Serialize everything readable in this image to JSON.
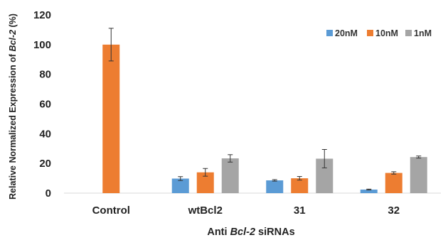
{
  "chart_data": {
    "type": "bar",
    "categories": [
      "Control",
      "wtBcl2",
      "31",
      "32"
    ],
    "series": [
      {
        "name": "20nM",
        "color": "#5b9bd5",
        "values": [
          null,
          9.8,
          8.6,
          2.4
        ],
        "errors": [
          null,
          1.3,
          0.5,
          0.3
        ]
      },
      {
        "name": "10nM",
        "color": "#ed7d31",
        "values": [
          100,
          14,
          10,
          13.6
        ],
        "errors": [
          11,
          2.6,
          1.2,
          0.8
        ]
      },
      {
        "name": "1nM",
        "color": "#a5a5a5",
        "values": [
          null,
          23.4,
          23.2,
          24.3
        ],
        "errors": [
          null,
          2.5,
          6.2,
          0.7
        ]
      }
    ],
    "ylabel_parts": [
      "Relative Normalized Expression of ",
      "Bcl-2",
      " (%)"
    ],
    "xlabel_parts": [
      "Anti ",
      "Bcl-2",
      " siRNAs"
    ],
    "ylim": [
      0,
      120
    ],
    "yticks": [
      0,
      20,
      40,
      60,
      80,
      100,
      120
    ],
    "grid": false,
    "legend_position": "top-right"
  }
}
